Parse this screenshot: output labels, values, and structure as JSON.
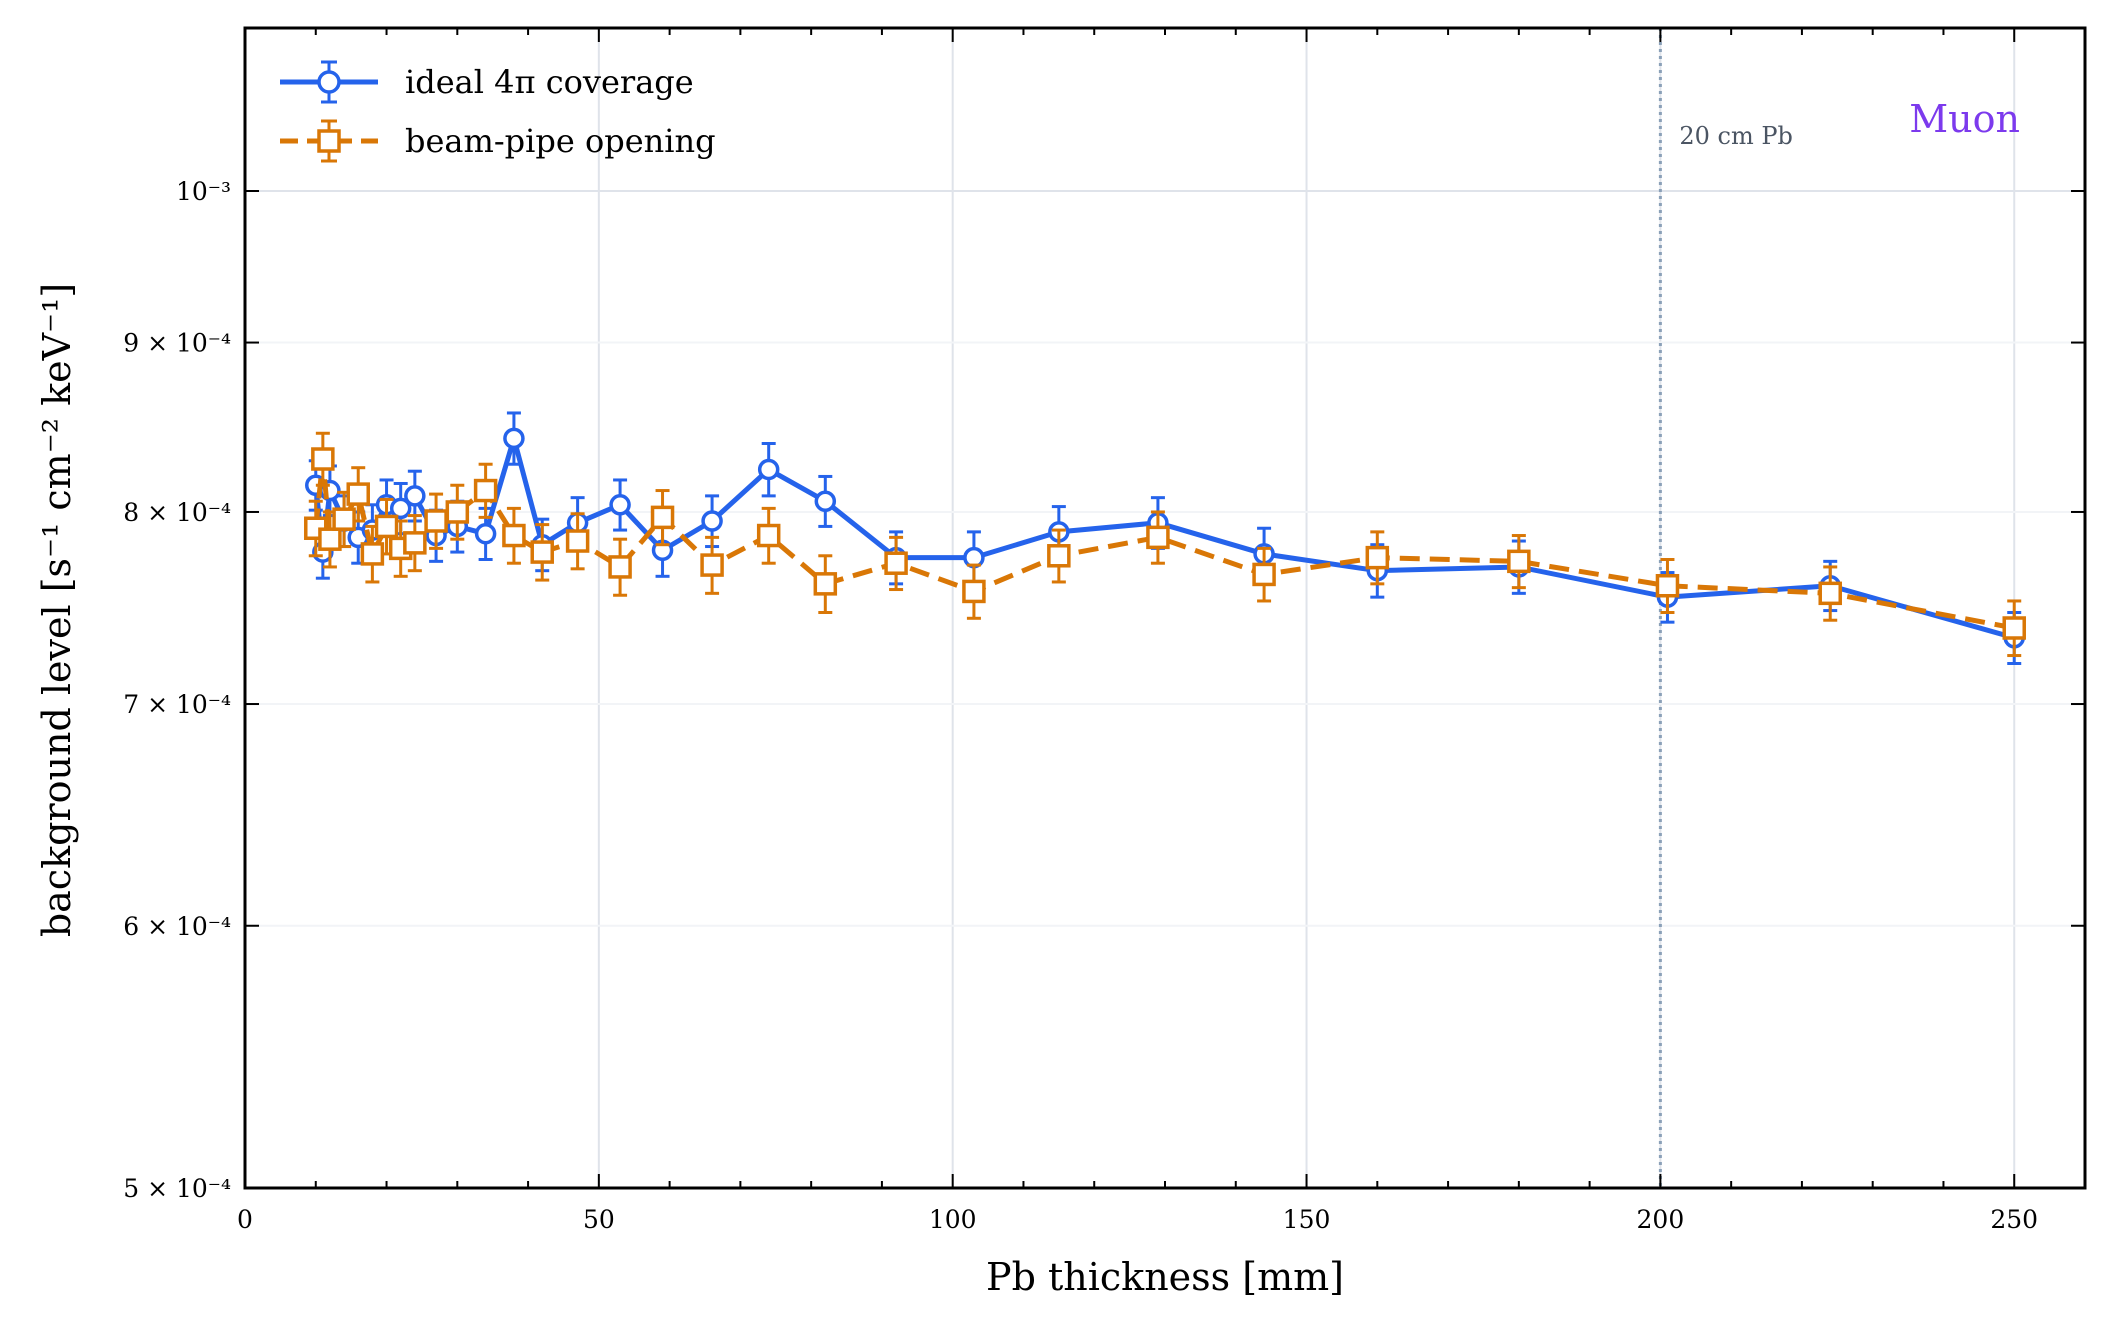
{
  "chart_data": {
    "type": "line",
    "xlabel": "Pb thickness [mm]",
    "ylabel": "background level [s⁻¹ cm⁻² keV⁻¹]",
    "xlim": [
      0,
      260
    ],
    "ylim": [
      0.0005,
      0.00112
    ],
    "yscale": "log",
    "x_ticks": [
      0,
      50,
      100,
      150,
      200,
      250
    ],
    "x_tick_labels": [
      "0",
      "50",
      "100",
      "150",
      "200",
      "250"
    ],
    "y_ticks": [
      0.0005,
      0.0006,
      0.0007,
      0.0008,
      0.0009,
      0.001
    ],
    "y_tick_labels": [
      "5 × 10⁻⁴",
      "6 × 10⁻⁴",
      "7 × 10⁻⁴",
      "8 × 10⁻⁴",
      "9 × 10⁻⁴",
      "10⁻³"
    ],
    "grid": true,
    "legend_position": "top-left",
    "corner_label": "Muon",
    "reference_line": {
      "x": 200,
      "label": "20 cm Pb",
      "color": "#8aa0b8"
    },
    "series": [
      {
        "name": "ideal 4π coverage",
        "color": "#2563eb",
        "marker": "circle",
        "linestyle": "solid",
        "x": [
          10,
          11,
          12,
          14,
          16,
          18,
          20,
          22,
          24,
          27,
          30,
          34,
          38,
          42,
          47,
          53,
          59,
          66,
          74,
          82,
          92,
          103,
          115,
          129,
          144,
          160,
          180,
          201,
          224,
          250
        ],
        "y": [
          0.000815,
          0.000778,
          0.000812,
          0.000795,
          0.000786,
          0.00079,
          0.000804,
          0.000802,
          0.000809,
          0.000787,
          0.000792,
          0.000788,
          0.000842,
          0.000782,
          0.000794,
          0.000804,
          0.000779,
          0.000795,
          0.000824,
          0.000806,
          0.000775,
          0.000775,
          0.000789,
          0.000794,
          0.000777,
          0.000768,
          0.00077,
          0.000754,
          0.00076,
          0.000733
        ],
        "yerr": [
          1.4e-05,
          1.4e-05,
          1.4e-05,
          1.4e-05,
          1.4e-05,
          1.4e-05,
          1.4e-05,
          1.4e-05,
          1.4e-05,
          1.4e-05,
          1.4e-05,
          1.4e-05,
          1.5e-05,
          1.4e-05,
          1.4e-05,
          1.4e-05,
          1.4e-05,
          1.4e-05,
          1.5e-05,
          1.4e-05,
          1.4e-05,
          1.4e-05,
          1.4e-05,
          1.4e-05,
          1.4e-05,
          1.4e-05,
          1.4e-05,
          1.3e-05,
          1.3e-05,
          1.3e-05
        ]
      },
      {
        "name": "beam-pipe opening",
        "color": "#d97706",
        "marker": "square",
        "linestyle": "dashed",
        "x": [
          10,
          11,
          12,
          14,
          16,
          18,
          20,
          22,
          24,
          27,
          30,
          34,
          38,
          42,
          47,
          53,
          59,
          66,
          74,
          82,
          92,
          103,
          115,
          129,
          144,
          160,
          180,
          201,
          224,
          250
        ],
        "y": [
          0.000791,
          0.00083,
          0.000785,
          0.000796,
          0.00081,
          0.000777,
          0.000792,
          0.00078,
          0.000783,
          0.000795,
          0.0008,
          0.000812,
          0.000787,
          0.000778,
          0.000784,
          0.00077,
          0.000797,
          0.000771,
          0.000787,
          0.000761,
          0.000772,
          0.000757,
          0.000776,
          0.000786,
          0.000766,
          0.000775,
          0.000773,
          0.00076,
          0.000756,
          0.000738
        ],
        "yerr": [
          1.5e-05,
          1.5e-05,
          1.5e-05,
          1.5e-05,
          1.5e-05,
          1.5e-05,
          1.5e-05,
          1.5e-05,
          1.5e-05,
          1.5e-05,
          1.5e-05,
          1.5e-05,
          1.5e-05,
          1.5e-05,
          1.5e-05,
          1.5e-05,
          1.5e-05,
          1.5e-05,
          1.5e-05,
          1.5e-05,
          1.4e-05,
          1.4e-05,
          1.4e-05,
          1.4e-05,
          1.4e-05,
          1.4e-05,
          1.4e-05,
          1.4e-05,
          1.4e-05,
          1.4e-05
        ]
      }
    ]
  }
}
